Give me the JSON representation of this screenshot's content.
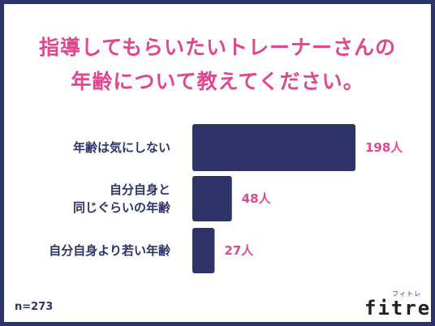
{
  "title": {
    "line1": "指導してもらいたいトレーナーさんの",
    "line2": "年齢について教えてください。"
  },
  "sample_note": "n=273",
  "logo": {
    "kana": "フィトレ",
    "word": "fitre"
  },
  "colors": {
    "bar": "#2e3467",
    "accent": "#e0478f",
    "frame": "#2e3467"
  },
  "chart_data": {
    "type": "bar",
    "orientation": "horizontal",
    "categories": [
      [
        "年齢は気にしない"
      ],
      [
        "自分自身と",
        "同じぐらいの年齢"
      ],
      [
        "自分自身より若い年齢"
      ]
    ],
    "values": [
      198,
      48,
      27
    ],
    "value_labels": [
      "198人",
      "48人",
      "27人"
    ],
    "unit": "人",
    "title": "指導してもらいたいトレーナーさんの年齢について教えてください。",
    "xlim": [
      0,
      198
    ],
    "grid": false
  }
}
